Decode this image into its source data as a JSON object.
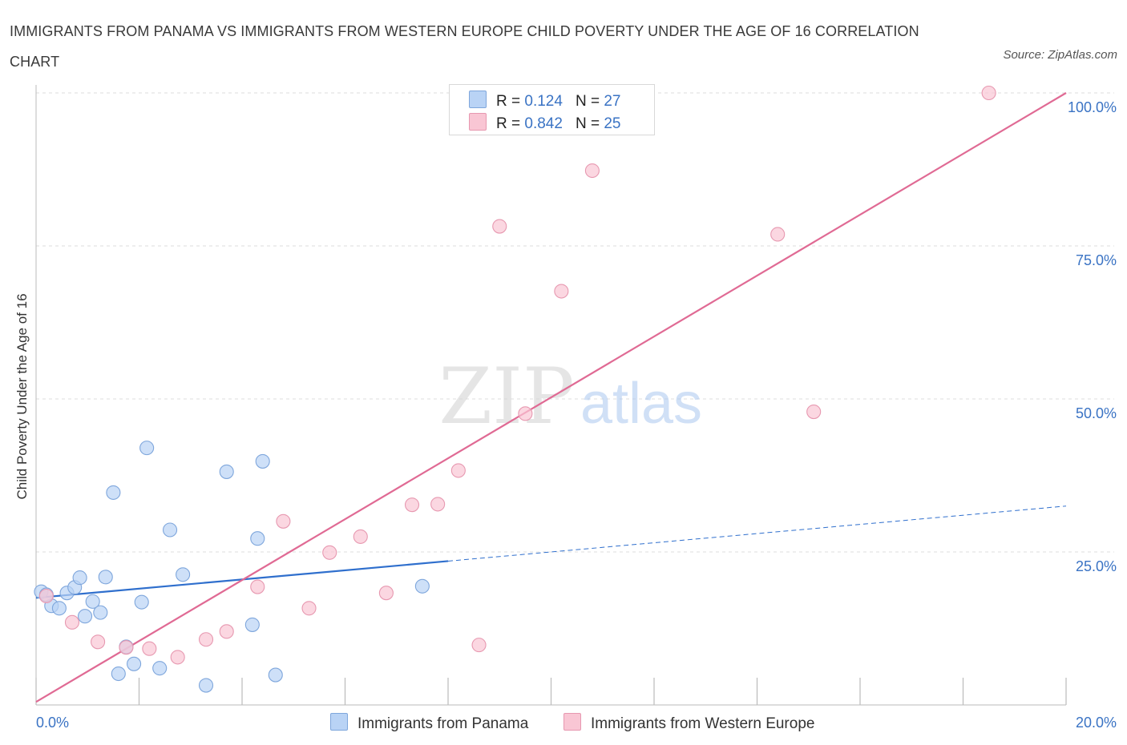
{
  "title": "IMMIGRANTS FROM PANAMA VS IMMIGRANTS FROM WESTERN EUROPE CHILD POVERTY UNDER THE AGE OF 16 CORRELATION CHART",
  "source": "Source: ZipAtlas.com",
  "watermark": {
    "zip": "ZIP",
    "atlas": "atlas"
  },
  "legend": {
    "rows": [
      {
        "r_label": "R =",
        "r_value": "0.124",
        "n_label": "N =",
        "n_value": "27"
      },
      {
        "r_label": "R =",
        "r_value": "0.842",
        "n_label": "N =",
        "n_value": "25"
      }
    ]
  },
  "bottom_legend": [
    "Immigrants from Panama",
    "Immigrants from Western Europe"
  ],
  "colors": {
    "blue_fill": "#b9d3f5",
    "blue_stroke": "#7ea6dc",
    "blue_line": "#2f6fcd",
    "pink_fill": "#f9c6d4",
    "pink_stroke": "#e798b0",
    "pink_line": "#e06a94",
    "tick_label": "#3a73c4",
    "grid": "#dddddd"
  },
  "chart_data": {
    "type": "scatter",
    "title": "IMMIGRANTS FROM PANAMA VS IMMIGRANTS FROM WESTERN EUROPE CHILD POVERTY UNDER THE AGE OF 16 CORRELATION CHART",
    "xlabel": "",
    "ylabel": "Child Poverty Under the Age of 16",
    "xlim": [
      0,
      20
    ],
    "ylim": [
      0,
      100
    ],
    "x_tick_labels": [
      {
        "value": 0,
        "label": "0.0%"
      },
      {
        "value": 20,
        "label": "20.0%"
      }
    ],
    "y_tick_labels": [
      {
        "value": 25,
        "label": "25.0%"
      },
      {
        "value": 50,
        "label": "50.0%"
      },
      {
        "value": 75,
        "label": "75.0%"
      },
      {
        "value": 100,
        "label": "100.0%"
      }
    ],
    "grid": true,
    "legend_position": "top-center",
    "series": [
      {
        "name": "Immigrants from Panama",
        "color": "#b9d3f5",
        "points": [
          [
            0.1,
            18.5
          ],
          [
            0.3,
            16.2
          ],
          [
            0.45,
            15.8
          ],
          [
            0.6,
            18.3
          ],
          [
            0.75,
            19.2
          ],
          [
            0.85,
            20.8
          ],
          [
            0.95,
            14.5
          ],
          [
            1.1,
            16.9
          ],
          [
            1.25,
            15.1
          ],
          [
            1.35,
            20.9
          ],
          [
            1.5,
            34.7
          ],
          [
            1.6,
            5.1
          ],
          [
            1.75,
            9.5
          ],
          [
            1.9,
            6.7
          ],
          [
            2.05,
            16.8
          ],
          [
            2.15,
            42.0
          ],
          [
            2.4,
            6.0
          ],
          [
            2.6,
            28.6
          ],
          [
            2.85,
            21.3
          ],
          [
            3.3,
            3.2
          ],
          [
            3.7,
            38.1
          ],
          [
            4.2,
            13.1
          ],
          [
            4.3,
            27.2
          ],
          [
            4.4,
            39.8
          ],
          [
            4.65,
            4.9
          ],
          [
            7.5,
            19.4
          ],
          [
            0.2,
            18.0
          ]
        ],
        "trend": {
          "x": [
            0,
            8
          ],
          "y": [
            17.5,
            23.5
          ],
          "dashed_to": [
            20,
            32.5
          ]
        }
      },
      {
        "name": "Immigrants from Western Europe",
        "color": "#f9c6d4",
        "points": [
          [
            0.2,
            17.8
          ],
          [
            0.7,
            13.5
          ],
          [
            1.2,
            10.3
          ],
          [
            1.75,
            9.4
          ],
          [
            2.2,
            9.2
          ],
          [
            2.75,
            7.8
          ],
          [
            3.3,
            10.7
          ],
          [
            3.7,
            12.0
          ],
          [
            4.3,
            19.3
          ],
          [
            4.8,
            30.0
          ],
          [
            5.3,
            15.8
          ],
          [
            5.7,
            24.9
          ],
          [
            6.3,
            27.5
          ],
          [
            6.8,
            18.3
          ],
          [
            7.3,
            32.7
          ],
          [
            7.8,
            32.8
          ],
          [
            8.2,
            38.3
          ],
          [
            8.6,
            9.8
          ],
          [
            9.0,
            78.2
          ],
          [
            9.5,
            47.6
          ],
          [
            10.2,
            67.6
          ],
          [
            10.8,
            87.3
          ],
          [
            14.4,
            76.9
          ],
          [
            15.1,
            47.9
          ],
          [
            18.5,
            100.0
          ]
        ],
        "trend": {
          "x": [
            0,
            20
          ],
          "y": [
            0.5,
            100
          ]
        }
      }
    ]
  }
}
